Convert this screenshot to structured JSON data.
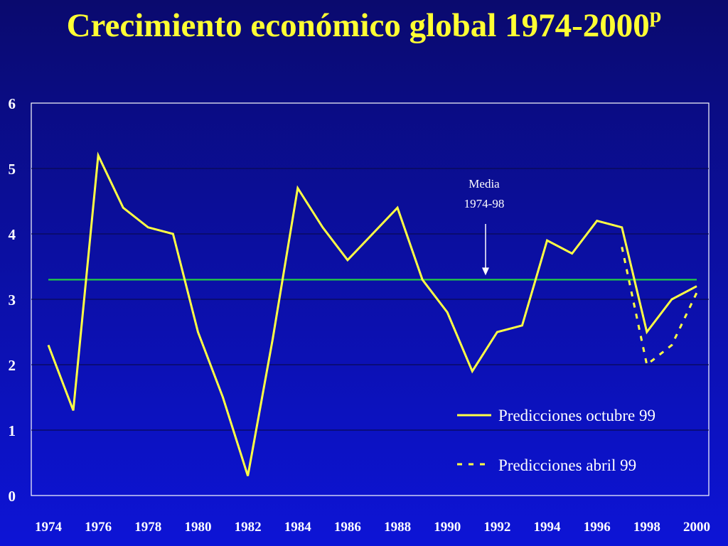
{
  "title": {
    "main": "Crecimiento económico global 1974-2000",
    "superscript": "p"
  },
  "colors": {
    "background": "#0b0fa0",
    "title": "#ffff33",
    "series_line": "#ffff44",
    "mean_line": "#22cc44",
    "axis_text": "#ffffff"
  },
  "chart_data": {
    "type": "line",
    "title": "Crecimiento económico global 1974-2000p",
    "xlabel": "",
    "ylabel": "",
    "xlim": [
      1974,
      2000
    ],
    "ylim": [
      0,
      6
    ],
    "yticks": [
      0,
      1,
      2,
      3,
      4,
      5,
      6
    ],
    "xticks": [
      1974,
      1976,
      1978,
      1980,
      1982,
      1984,
      1986,
      1988,
      1990,
      1992,
      1994,
      1996,
      1998,
      2000
    ],
    "grid": true,
    "legend_position": "bottom-right",
    "series": [
      {
        "name": "Predicciones octubre 99",
        "style": "solid",
        "x": [
          1974,
          1975,
          1976,
          1977,
          1978,
          1979,
          1980,
          1981,
          1982,
          1983,
          1984,
          1985,
          1986,
          1987,
          1988,
          1989,
          1990,
          1991,
          1992,
          1993,
          1994,
          1995,
          1996,
          1997,
          1998,
          1999,
          2000
        ],
        "values": [
          2.3,
          1.3,
          5.2,
          4.4,
          4.1,
          4.0,
          2.5,
          1.5,
          0.3,
          2.4,
          4.7,
          4.1,
          3.6,
          4.0,
          4.4,
          3.3,
          2.8,
          1.9,
          2.5,
          2.6,
          3.9,
          3.7,
          4.2,
          4.1,
          2.5,
          3.0,
          3.2
        ]
      },
      {
        "name": "Predicciones abril 99",
        "style": "dashed",
        "x": [
          1997,
          1998,
          1999,
          2000
        ],
        "values": [
          3.8,
          2.0,
          2.3,
          3.1
        ]
      }
    ],
    "reference_lines": [
      {
        "value": 3.3,
        "from": 1974,
        "to": 2000
      }
    ],
    "annotations": [
      {
        "line1": "Media",
        "line2": "1974-98",
        "points_to_x": 1991.5,
        "points_to_y": 3.3
      }
    ]
  }
}
